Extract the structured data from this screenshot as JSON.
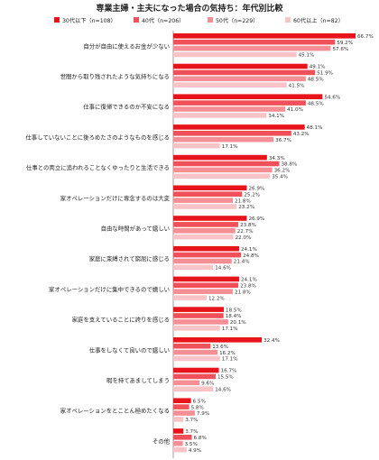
{
  "chart_data": {
    "type": "bar",
    "orientation": "horizontal",
    "title": "専業主婦・主夫になった場合の気持ち：年代別比較",
    "xlabel": "",
    "ylabel": "",
    "xlim": [
      0,
      70
    ],
    "grid": false,
    "legend_position": "top",
    "categories": [
      "自分が自由に使えるお金が少ない",
      "世間から取り残されたような気持ちになる",
      "仕事に復帰できるのか不安になる",
      "仕事していないことに後ろめたさのようなものを感じる",
      "仕事との両立に追われることなくゆったりと生活できる",
      "家オペレーションだけに専念するのは大変",
      "自由な時間があって嬉しい",
      "家庭に束縛されて窮屈に感じる",
      "家オペレーションだけに集中できるので嬉しい",
      "家庭を支えていることに誇りを感じる",
      "仕事をしなくて良いので嬉しい",
      "暇を持てあましてしまう",
      "家オペレーションをとことん極めたくなる",
      "その他"
    ],
    "series": [
      {
        "name": "30代以下（n=108）",
        "values": [
          66.7,
          49.1,
          54.6,
          48.1,
          34.3,
          26.9,
          26.9,
          24.1,
          24.1,
          18.5,
          32.4,
          16.7,
          6.5,
          3.7
        ]
      },
      {
        "name": "40代（n=206）",
        "values": [
          59.2,
          51.9,
          48.5,
          43.2,
          38.8,
          25.2,
          23.8,
          24.8,
          23.8,
          18.4,
          13.6,
          15.5,
          5.8,
          6.8
        ]
      },
      {
        "name": "50代（n=229）",
        "values": [
          57.6,
          48.5,
          41.0,
          36.7,
          36.2,
          21.8,
          22.7,
          21.4,
          21.8,
          20.1,
          16.2,
          9.6,
          7.9,
          3.5
        ]
      },
      {
        "name": "60代以上（n=82）",
        "values": [
          45.1,
          41.5,
          34.1,
          17.1,
          35.4,
          23.2,
          22.0,
          14.6,
          12.2,
          17.1,
          17.1,
          14.6,
          3.7,
          4.9
        ]
      }
    ],
    "colors": [
      "#e8141c",
      "#f0505a",
      "#f48f95",
      "#f8c4c8"
    ],
    "value_suffix": "%"
  }
}
